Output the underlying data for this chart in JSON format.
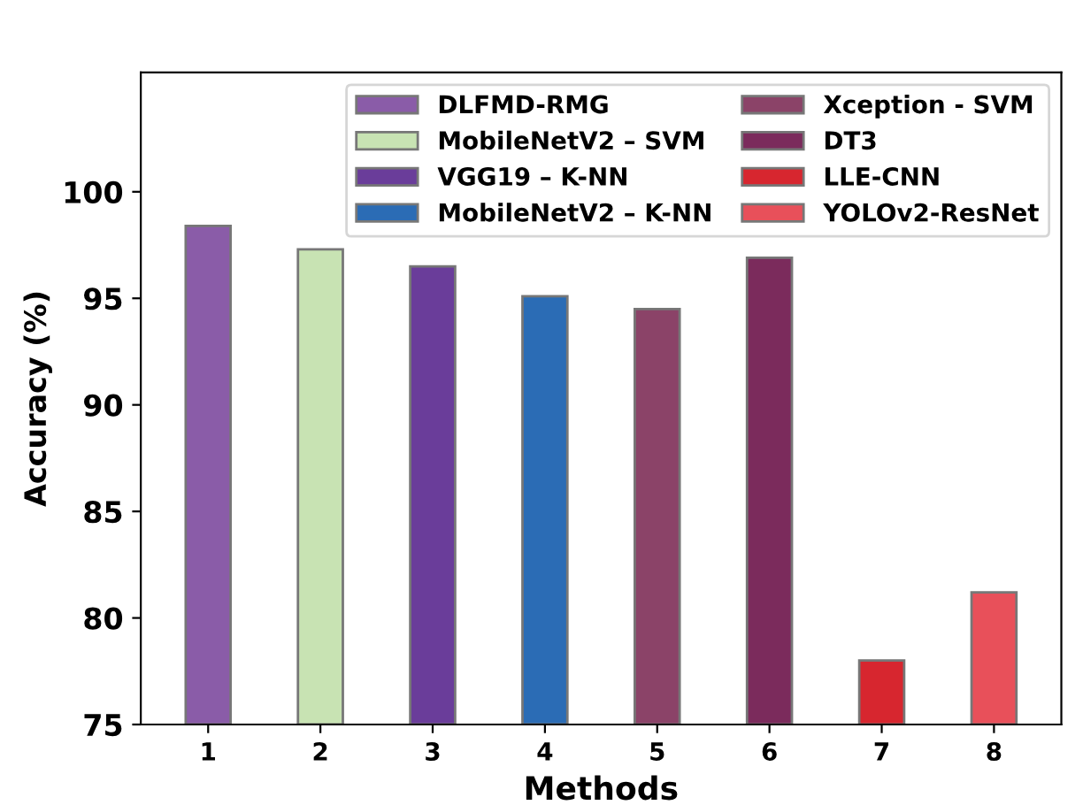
{
  "chart_data": {
    "type": "bar",
    "xlabel": "Methods",
    "ylabel": "Accuracy (%)",
    "categories": [
      "1",
      "2",
      "3",
      "4",
      "5",
      "6",
      "7",
      "8"
    ],
    "series": [
      {
        "name": "DLFMD-RMG",
        "color": "#8a5ca8",
        "values": [
          98.4,
          null,
          null,
          null,
          null,
          null,
          null,
          null
        ]
      },
      {
        "name": "MobileNetV2 – SVM",
        "color": "#c8e3b3",
        "values": [
          null,
          97.3,
          null,
          null,
          null,
          null,
          null,
          null
        ]
      },
      {
        "name": "VGG19 – K-NN",
        "color": "#6a3d9a",
        "values": [
          null,
          null,
          96.5,
          null,
          null,
          null,
          null,
          null
        ]
      },
      {
        "name": "MobileNetV2 – K-NN",
        "color": "#2b6cb5",
        "values": [
          null,
          null,
          null,
          95.1,
          null,
          null,
          null,
          null
        ]
      },
      {
        "name": "Xception - SVM",
        "color": "#8b4368",
        "values": [
          null,
          null,
          null,
          null,
          94.5,
          null,
          null,
          null
        ]
      },
      {
        "name": "DT3",
        "color": "#7b2b5c",
        "values": [
          null,
          null,
          null,
          null,
          null,
          96.9,
          null,
          null
        ]
      },
      {
        "name": "LLE-CNN",
        "color": "#d7262f",
        "values": [
          null,
          null,
          null,
          null,
          null,
          null,
          78.0,
          null
        ]
      },
      {
        "name": "YOLOv2-ResNet",
        "color": "#e8505a",
        "values": [
          null,
          null,
          null,
          null,
          null,
          null,
          null,
          81.2
        ]
      }
    ],
    "ylim": [
      75,
      105.6
    ],
    "yticks": [
      75,
      80,
      85,
      90,
      95,
      100
    ],
    "grid": false,
    "legend": "top right"
  }
}
